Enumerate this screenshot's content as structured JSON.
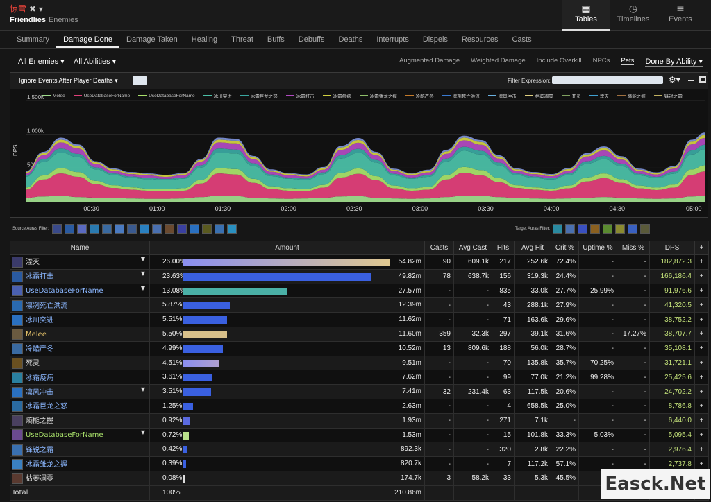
{
  "header": {
    "title": "惊雪",
    "title_suffix": "✖ ▾",
    "friendlies": "Friendlies",
    "enemies": "Enemies",
    "view_tabs": [
      {
        "label": "Tables",
        "icon": "table-icon"
      },
      {
        "label": "Timelines",
        "icon": "clock-icon"
      },
      {
        "label": "Events",
        "icon": "list-icon"
      }
    ]
  },
  "tabs": [
    "Summary",
    "Damage Done",
    "Damage Taken",
    "Healing",
    "Threat",
    "Buffs",
    "Debuffs",
    "Deaths",
    "Interrupts",
    "Dispels",
    "Resources",
    "Casts"
  ],
  "filters": {
    "enemies": "All Enemies",
    "abilities": "All Abilities",
    "options": [
      "Augmented Damage",
      "Weighted Damage",
      "Include Overkill",
      "NPCs",
      "Pets"
    ],
    "done_by": "Done By Ability"
  },
  "chart_bar": {
    "ignore": "Ignore Events After Player Deaths",
    "filter_label": "Filter Expression:"
  },
  "chart_data": {
    "type": "area",
    "ylabel": "DPS",
    "yticks": [
      "0k",
      "500k",
      "1,000k",
      "1,500k"
    ],
    "xticks": [
      "00:30",
      "01:00",
      "01:30",
      "02:00",
      "02:30",
      "03:00",
      "03:30",
      "04:00",
      "04:30",
      "05:00"
    ],
    "xlim": [
      0,
      310
    ],
    "ylim": [
      0,
      1500
    ],
    "x": [
      0,
      8,
      16,
      24,
      32,
      40,
      48,
      56,
      64,
      72,
      80,
      88,
      96,
      104,
      112,
      120,
      128,
      136,
      144,
      152,
      160,
      168,
      176,
      184,
      192,
      200,
      208,
      216,
      224,
      232,
      240,
      248,
      256,
      264,
      272,
      280,
      288,
      296,
      304,
      310
    ],
    "series": [
      {
        "name": "Melee",
        "color": "#9fdc8c",
        "values": [
          60,
          80,
          90,
          70,
          60,
          55,
          50,
          45,
          45,
          50,
          70,
          90,
          85,
          60,
          50,
          45,
          50,
          60,
          80,
          85,
          60,
          50,
          45,
          50,
          70,
          90,
          90,
          70,
          55,
          50,
          45,
          50,
          60,
          70,
          60,
          50,
          45,
          50,
          80,
          90
        ]
      },
      {
        "name": "UseDatabaseForName",
        "color": "#e0407a",
        "values": [
          120,
          250,
          330,
          300,
          200,
          150,
          130,
          120,
          110,
          115,
          200,
          330,
          320,
          220,
          140,
          120,
          110,
          150,
          280,
          330,
          260,
          150,
          120,
          130,
          260,
          340,
          300,
          220,
          150,
          130,
          120,
          150,
          240,
          280,
          220,
          150,
          130,
          160,
          320,
          360
        ]
      },
      {
        "name": "UseDatabaseForName",
        "color": "#a8e06a",
        "values": [
          30,
          60,
          80,
          70,
          50,
          40,
          35,
          30,
          30,
          35,
          55,
          80,
          80,
          60,
          40,
          35,
          30,
          40,
          70,
          80,
          60,
          40,
          35,
          40,
          65,
          85,
          80,
          60,
          40,
          35,
          30,
          40,
          60,
          70,
          55,
          40,
          35,
          45,
          80,
          90
        ]
      },
      {
        "name": "冰川突进",
        "color": "#4bbfa6",
        "values": [
          160,
          200,
          230,
          220,
          170,
          150,
          140,
          140,
          135,
          140,
          180,
          230,
          230,
          190,
          150,
          140,
          135,
          160,
          210,
          230,
          200,
          150,
          140,
          150,
          200,
          240,
          230,
          190,
          150,
          140,
          135,
          155,
          200,
          210,
          190,
          150,
          140,
          160,
          220,
          240
        ]
      },
      {
        "name": "冰霜巨龙之怒",
        "color": "#3aa7a0",
        "values": [
          20,
          40,
          60,
          50,
          30,
          25,
          20,
          20,
          20,
          20,
          35,
          60,
          60,
          40,
          25,
          20,
          20,
          25,
          50,
          60,
          40,
          25,
          20,
          25,
          45,
          60,
          55,
          40,
          25,
          20,
          20,
          25,
          40,
          50,
          40,
          25,
          20,
          30,
          60,
          65
        ]
      },
      {
        "name": "冰霜打击",
        "color": "#b04ac0",
        "values": [
          30,
          60,
          90,
          80,
          50,
          40,
          35,
          35,
          30,
          35,
          55,
          90,
          90,
          60,
          40,
          35,
          30,
          40,
          80,
          90,
          70,
          40,
          35,
          40,
          70,
          95,
          90,
          60,
          40,
          35,
          30,
          40,
          70,
          80,
          60,
          40,
          35,
          45,
          90,
          100
        ]
      },
      {
        "name": "冰霜疫病",
        "color": "#d0d040",
        "values": [
          20,
          30,
          40,
          35,
          25,
          20,
          20,
          20,
          20,
          20,
          25,
          40,
          40,
          30,
          20,
          20,
          20,
          25,
          35,
          40,
          30,
          20,
          20,
          25,
          35,
          40,
          40,
          30,
          20,
          20,
          20,
          25,
          30,
          35,
          30,
          20,
          20,
          25,
          40,
          45
        ]
      },
      {
        "name": "凋零",
        "color": "#7b8fd6",
        "values": [
          10,
          20,
          30,
          25,
          15,
          15,
          10,
          10,
          10,
          10,
          15,
          30,
          30,
          20,
          15,
          10,
          10,
          15,
          25,
          30,
          20,
          15,
          10,
          15,
          25,
          30,
          30,
          20,
          15,
          10,
          10,
          15,
          20,
          25,
          20,
          15,
          10,
          15,
          30,
          35
        ]
      }
    ]
  },
  "legend": [
    {
      "label": "Melee",
      "color": "#9fdc8c"
    },
    {
      "label": "UseDatabaseForName",
      "color": "#e0407a"
    },
    {
      "label": "UseDatabaseForName",
      "color": "#a8e06a"
    },
    {
      "label": "冰川突进",
      "color": "#4bbfa6"
    },
    {
      "label": "冰霜巨龙之怒",
      "color": "#3aa7a0"
    },
    {
      "label": "冰霜打击",
      "color": "#b04ac0"
    },
    {
      "label": "冰霜疫病",
      "color": "#d0d040"
    },
    {
      "label": "冰霜雏龙之握",
      "color": "#8fbf6a"
    },
    {
      "label": "冷酷严冬",
      "color": "#c47a2a"
    },
    {
      "label": "凛冽死亡洪流",
      "color": "#3a7ad0"
    },
    {
      "label": "凛风冲击",
      "color": "#6ab0e0"
    },
    {
      "label": "枯萎凋零",
      "color": "#e0d080"
    },
    {
      "label": "死灵",
      "color": "#80a060"
    },
    {
      "label": "湮灭",
      "color": "#40a0d0"
    },
    {
      "label": "熵能之握",
      "color": "#a07040"
    },
    {
      "label": "锋锐之霜",
      "color": "#c0b060"
    }
  ],
  "aura_labels": {
    "source": "Source Auras Filter:",
    "target": "Target Auras Filter:"
  },
  "table": {
    "headers": [
      "Name",
      "Amount",
      "Casts",
      "Avg Cast",
      "Hits",
      "Avg Hit",
      "Crit %",
      "Uptime %",
      "Miss %",
      "DPS",
      "+"
    ],
    "rows": [
      {
        "name": "湮灭",
        "cls": "white",
        "icon": "#3a3a6a",
        "caret": true,
        "pct": "26.00%",
        "frac": 1.0,
        "bar": "linear-gradient(90deg,#8a8ef0,#e0c890)",
        "total": "54.82m",
        "casts": "90",
        "avg_cast": "609.1k",
        "hits": "217",
        "avg_hit": "252.6k",
        "crit": "72.4%",
        "uptime": "-",
        "miss": "-",
        "dps": "182,872.3"
      },
      {
        "name": "冰霜打击",
        "cls": "blue",
        "icon": "#2a5aa0",
        "caret": true,
        "pct": "23.63%",
        "frac": 0.909,
        "bar": "#3a60e0",
        "total": "49.82m",
        "casts": "78",
        "avg_cast": "638.7k",
        "hits": "156",
        "avg_hit": "319.3k",
        "crit": "24.4%",
        "uptime": "-",
        "miss": "-",
        "dps": "166,186.4"
      },
      {
        "name": "UseDatabaseForName",
        "cls": "blue",
        "icon": "#4a60b0",
        "caret": true,
        "pct": "13.08%",
        "frac": 0.503,
        "bar": "#4ab0a6",
        "total": "27.57m",
        "casts": "-",
        "avg_cast": "-",
        "hits": "835",
        "avg_hit": "33.0k",
        "crit": "27.7%",
        "uptime": "25.99%",
        "miss": "-",
        "dps": "91,976.6"
      },
      {
        "name": "凛冽死亡洪流",
        "cls": "blue",
        "icon": "#2a6ab0",
        "caret": false,
        "pct": "5.87%",
        "frac": 0.226,
        "bar": "#3a60e0",
        "total": "12.39m",
        "casts": "-",
        "avg_cast": "-",
        "hits": "43",
        "avg_hit": "288.1k",
        "crit": "27.9%",
        "uptime": "-",
        "miss": "-",
        "dps": "41,320.5"
      },
      {
        "name": "冰川突进",
        "cls": "blue",
        "icon": "#2a70c0",
        "caret": false,
        "pct": "5.51%",
        "frac": 0.212,
        "bar": "#3a60e0",
        "total": "11.62m",
        "casts": "-",
        "avg_cast": "-",
        "hits": "71",
        "avg_hit": "163.6k",
        "crit": "29.6%",
        "uptime": "-",
        "miss": "-",
        "dps": "38,752.2"
      },
      {
        "name": "Melee",
        "cls": "yellow",
        "icon": "#6a5a40",
        "caret": false,
        "pct": "5.50%",
        "frac": 0.212,
        "bar": "#d8c08a",
        "total": "11.60m",
        "casts": "359",
        "avg_cast": "32.3k",
        "hits": "297",
        "avg_hit": "39.1k",
        "crit": "31.6%",
        "uptime": "-",
        "miss": "17.27%",
        "dps": "38,707.7"
      },
      {
        "name": "冷酷严冬",
        "cls": "blue",
        "icon": "#3a6aa0",
        "caret": false,
        "pct": "4.99%",
        "frac": 0.192,
        "bar": "#3a60e0",
        "total": "10.52m",
        "casts": "13",
        "avg_cast": "809.6k",
        "hits": "188",
        "avg_hit": "56.0k",
        "crit": "28.7%",
        "uptime": "-",
        "miss": "-",
        "dps": "35,108.1"
      },
      {
        "name": "死灵",
        "cls": "white",
        "icon": "#6a5020",
        "caret": false,
        "pct": "4.51%",
        "frac": 0.173,
        "bar": "linear-gradient(90deg,#8a8ef0,#b0a0d0)",
        "total": "9.51m",
        "casts": "-",
        "avg_cast": "-",
        "hits": "70",
        "avg_hit": "135.8k",
        "crit": "35.7%",
        "uptime": "70.25%",
        "miss": "-",
        "dps": "31,721.1"
      },
      {
        "name": "冰霜疫病",
        "cls": "blue",
        "icon": "#2a80a0",
        "caret": false,
        "pct": "3.61%",
        "frac": 0.139,
        "bar": "#3a60e0",
        "total": "7.62m",
        "casts": "-",
        "avg_cast": "-",
        "hits": "99",
        "avg_hit": "77.0k",
        "crit": "21.2%",
        "uptime": "99.28%",
        "miss": "-",
        "dps": "25,425.6"
      },
      {
        "name": "凛风冲击",
        "cls": "blue",
        "icon": "#2a70c0",
        "caret": true,
        "pct": "3.51%",
        "frac": 0.135,
        "bar": "#3a60e0",
        "total": "7.41m",
        "casts": "32",
        "avg_cast": "231.4k",
        "hits": "63",
        "avg_hit": "117.5k",
        "crit": "20.6%",
        "uptime": "-",
        "miss": "-",
        "dps": "24,702.2"
      },
      {
        "name": "冰霜巨龙之怒",
        "cls": "blue",
        "icon": "#2a6aa0",
        "caret": false,
        "pct": "1.25%",
        "frac": 0.048,
        "bar": "#3a60e0",
        "total": "2.63m",
        "casts": "-",
        "avg_cast": "-",
        "hits": "4",
        "avg_hit": "658.5k",
        "crit": "25.0%",
        "uptime": "-",
        "miss": "-",
        "dps": "8,786.8"
      },
      {
        "name": "熵能之握",
        "cls": "white",
        "icon": "#4a4060",
        "caret": false,
        "pct": "0.92%",
        "frac": 0.035,
        "bar": "#5a6ae0",
        "total": "1.93m",
        "casts": "-",
        "avg_cast": "-",
        "hits": "271",
        "avg_hit": "7.1k",
        "crit": "-",
        "uptime": "-",
        "miss": "-",
        "dps": "6,440.0"
      },
      {
        "name": "UseDatabaseForName",
        "cls": "green",
        "icon": "#6a4a90",
        "caret": true,
        "pct": "0.72%",
        "frac": 0.028,
        "bar": "#b8e08a",
        "total": "1.53m",
        "casts": "-",
        "avg_cast": "-",
        "hits": "15",
        "avg_hit": "101.8k",
        "crit": "33.3%",
        "uptime": "5.03%",
        "miss": "-",
        "dps": "5,095.4"
      },
      {
        "name": "锋锐之霜",
        "cls": "blue",
        "icon": "#3a70b0",
        "caret": false,
        "pct": "0.42%",
        "frac": 0.016,
        "bar": "#3a60e0",
        "total": "892.3k",
        "casts": "-",
        "avg_cast": "-",
        "hits": "320",
        "avg_hit": "2.8k",
        "crit": "22.2%",
        "uptime": "-",
        "miss": "-",
        "dps": "2,976.4"
      },
      {
        "name": "冰霜雏龙之握",
        "cls": "blue",
        "icon": "#3a80c0",
        "caret": false,
        "pct": "0.39%",
        "frac": 0.015,
        "bar": "#3a60e0",
        "total": "820.7k",
        "casts": "-",
        "avg_cast": "-",
        "hits": "7",
        "avg_hit": "117.2k",
        "crit": "57.1%",
        "uptime": "-",
        "miss": "-",
        "dps": "2,737.8"
      },
      {
        "name": "枯萎凋零",
        "cls": "white",
        "icon": "#5a3a30",
        "caret": false,
        "pct": "0.08%",
        "frac": 0.003,
        "bar": "#dddddd",
        "total": "174.7k",
        "casts": "3",
        "avg_cast": "58.2k",
        "hits": "33",
        "avg_hit": "5.3k",
        "crit": "45.5%",
        "uptime": "-",
        "miss": "-",
        "dps": "-"
      }
    ],
    "total": {
      "name": "Total",
      "pct": "100%",
      "amount": "210.86m"
    }
  },
  "watermark": "Easck.Net"
}
